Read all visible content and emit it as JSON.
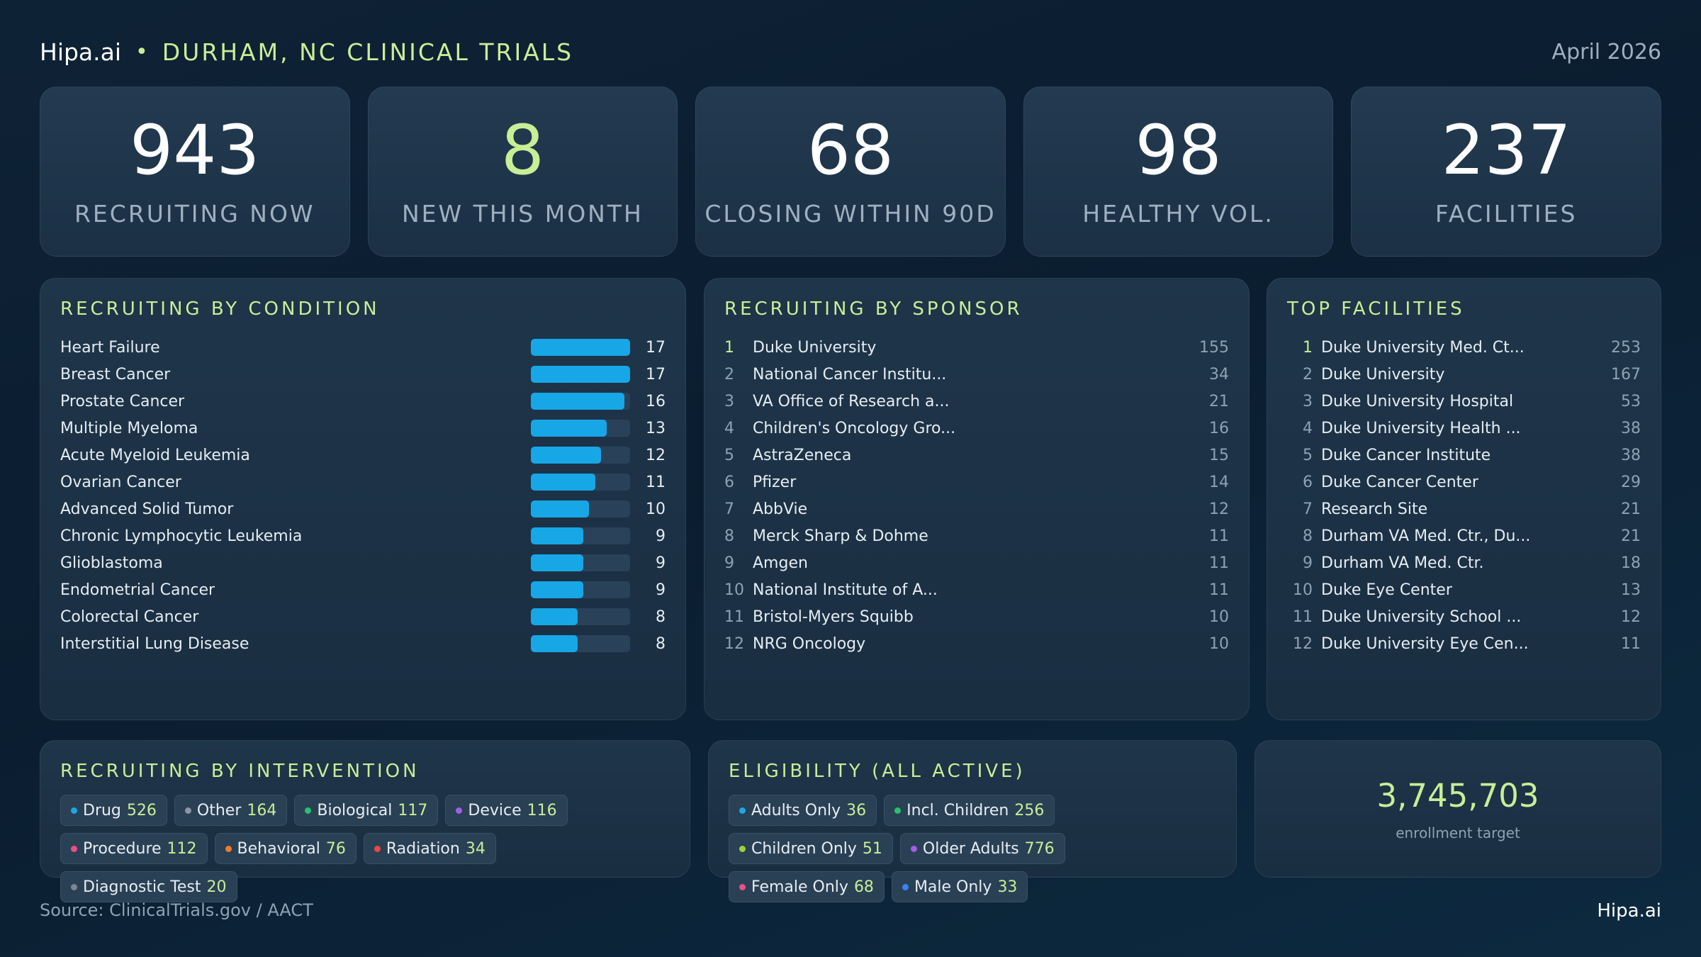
{
  "header": {
    "brand": "Hipa.ai",
    "separator": "•",
    "title": "DURHAM, NC CLINICAL TRIALS",
    "date": "April 2026"
  },
  "kpis": [
    {
      "value": "943",
      "label": "RECRUITING NOW",
      "highlight": false
    },
    {
      "value": "8",
      "label": "NEW THIS MONTH",
      "highlight": true
    },
    {
      "value": "68",
      "label": "CLOSING WITHIN 90D",
      "highlight": false
    },
    {
      "value": "98",
      "label": "HEALTHY VOL.",
      "highlight": false
    },
    {
      "value": "237",
      "label": "FACILITIES",
      "highlight": false
    }
  ],
  "conditions": {
    "title": "RECRUITING BY CONDITION",
    "max": 17,
    "items": [
      {
        "name": "Heart Failure",
        "count": 17
      },
      {
        "name": "Breast Cancer",
        "count": 17
      },
      {
        "name": "Prostate Cancer",
        "count": 16
      },
      {
        "name": "Multiple Myeloma",
        "count": 13
      },
      {
        "name": "Acute Myeloid Leukemia",
        "count": 12
      },
      {
        "name": "Ovarian Cancer",
        "count": 11
      },
      {
        "name": "Advanced Solid Tumor",
        "count": 10
      },
      {
        "name": "Chronic Lymphocytic Leukemia",
        "count": 9
      },
      {
        "name": "Glioblastoma",
        "count": 9
      },
      {
        "name": "Endometrial Cancer",
        "count": 9
      },
      {
        "name": "Colorectal Cancer",
        "count": 8
      },
      {
        "name": "Interstitial Lung Disease",
        "count": 8
      }
    ]
  },
  "sponsors": {
    "title": "RECRUITING BY SPONSOR",
    "items": [
      {
        "rank": "1",
        "name": "Duke University",
        "count": "155"
      },
      {
        "rank": "2",
        "name": "National Cancer Institu...",
        "count": "34"
      },
      {
        "rank": "3",
        "name": "VA Office of Research a...",
        "count": "21"
      },
      {
        "rank": "4",
        "name": "Children's Oncology Gro...",
        "count": "16"
      },
      {
        "rank": "5",
        "name": "AstraZeneca",
        "count": "15"
      },
      {
        "rank": "6",
        "name": "Pfizer",
        "count": "14"
      },
      {
        "rank": "7",
        "name": "AbbVie",
        "count": "12"
      },
      {
        "rank": "8",
        "name": "Merck Sharp & Dohme",
        "count": "11"
      },
      {
        "rank": "9",
        "name": "Amgen",
        "count": "11"
      },
      {
        "rank": "10",
        "name": "National Institute of A...",
        "count": "11"
      },
      {
        "rank": "11",
        "name": "Bristol-Myers Squibb",
        "count": "10"
      },
      {
        "rank": "12",
        "name": "NRG Oncology",
        "count": "10"
      }
    ]
  },
  "facilities": {
    "title": "TOP FACILITIES",
    "items": [
      {
        "rank": "1",
        "name": "Duke University Med. Ct...",
        "count": "253"
      },
      {
        "rank": "2",
        "name": "Duke University",
        "count": "167"
      },
      {
        "rank": "3",
        "name": "Duke University Hospital",
        "count": "53"
      },
      {
        "rank": "4",
        "name": "Duke University Health ...",
        "count": "38"
      },
      {
        "rank": "5",
        "name": "Duke Cancer Institute",
        "count": "38"
      },
      {
        "rank": "6",
        "name": "Duke Cancer Center",
        "count": "29"
      },
      {
        "rank": "7",
        "name": "Research Site",
        "count": "21"
      },
      {
        "rank": "8",
        "name": "Durham VA Med. Ctr., Du...",
        "count": "21"
      },
      {
        "rank": "9",
        "name": "Durham VA Med. Ctr.",
        "count": "18"
      },
      {
        "rank": "10",
        "name": "Duke Eye Center",
        "count": "13"
      },
      {
        "rank": "11",
        "name": "Duke University School ...",
        "count": "12"
      },
      {
        "rank": "12",
        "name": "Duke University Eye Cen...",
        "count": "11"
      }
    ]
  },
  "interventions": {
    "title": "RECRUITING BY INTERVENTION",
    "items": [
      {
        "label": "Drug",
        "value": "526",
        "color": "#1ea7e8"
      },
      {
        "label": "Other",
        "value": "164",
        "color": "#8a96a3"
      },
      {
        "label": "Biological",
        "value": "117",
        "color": "#27c26c"
      },
      {
        "label": "Device",
        "value": "116",
        "color": "#a25ee8"
      },
      {
        "label": "Procedure",
        "value": "112",
        "color": "#ee4f86"
      },
      {
        "label": "Behavioral",
        "value": "76",
        "color": "#f07a2a"
      },
      {
        "label": "Radiation",
        "value": "34",
        "color": "#ee4545"
      },
      {
        "label": "Diagnostic Test",
        "value": "20",
        "color": "#7b8794"
      }
    ]
  },
  "eligibility": {
    "title": "ELIGIBILITY (ALL ACTIVE)",
    "items": [
      {
        "label": "Adults Only",
        "value": "36",
        "color": "#1ea7e8"
      },
      {
        "label": "Incl. Children",
        "value": "256",
        "color": "#27c26c"
      },
      {
        "label": "Children Only",
        "value": "51",
        "color": "#9ad136"
      },
      {
        "label": "Older Adults",
        "value": "776",
        "color": "#a25ee8"
      },
      {
        "label": "Female Only",
        "value": "68",
        "color": "#ee4f86"
      },
      {
        "label": "Male Only",
        "value": "33",
        "color": "#3b82f6"
      }
    ]
  },
  "target": {
    "value": "3,745,703",
    "label": "enrollment target"
  },
  "footer": {
    "source": "Source: ClinicalTrials.gov / AACT",
    "brand": "Hipa.ai"
  }
}
